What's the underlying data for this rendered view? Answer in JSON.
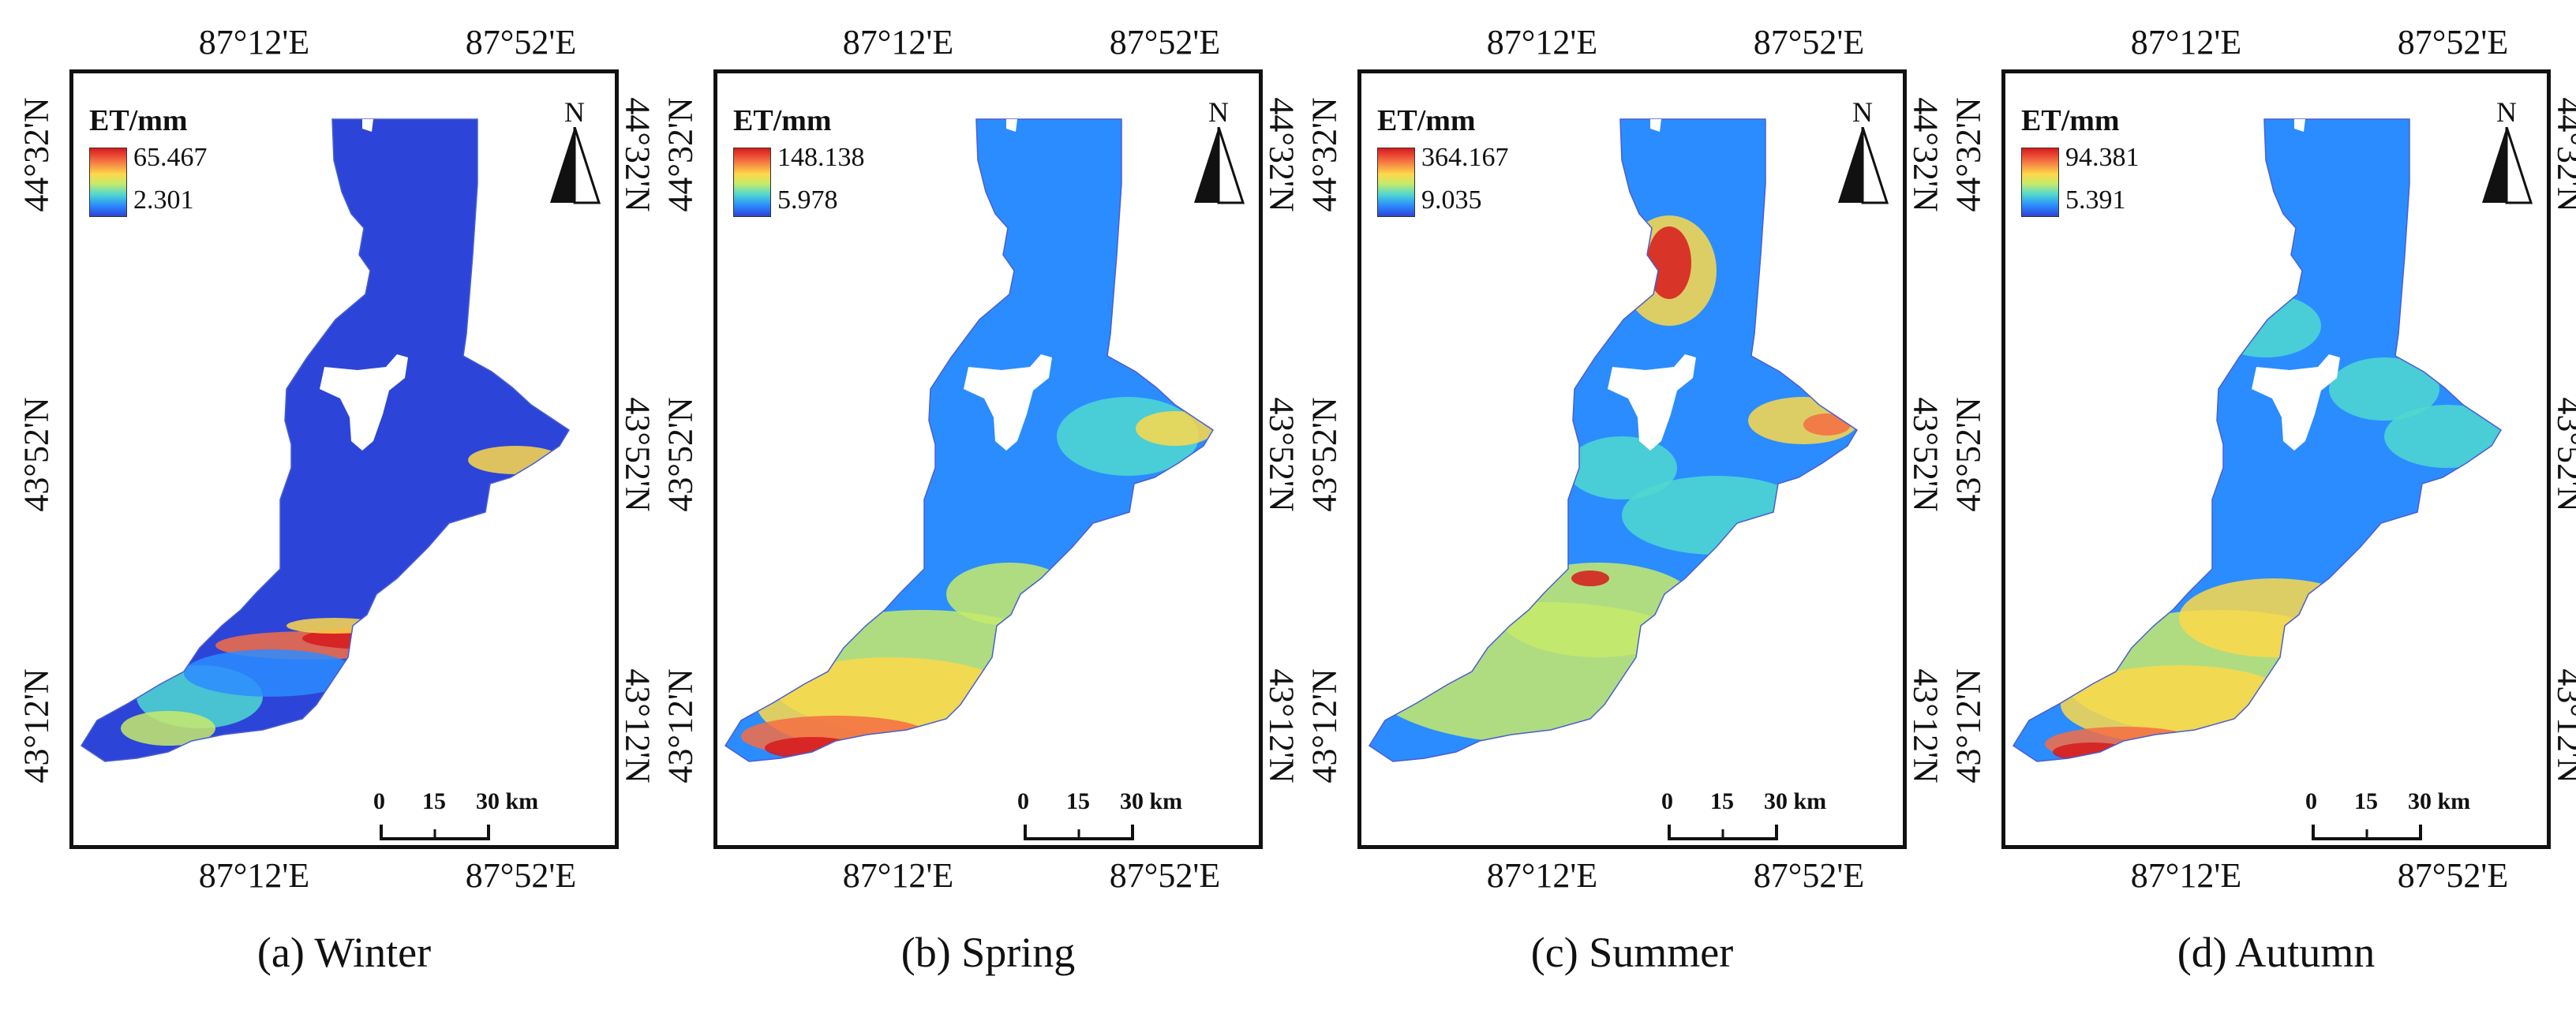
{
  "legend_title": "ET/mm",
  "scale_bar": {
    "ticks": [
      "0",
      "15",
      "30 km"
    ]
  },
  "north_arrow": {
    "label": "N"
  },
  "longitude_labels": [
    "87°12'E",
    "87°52'E"
  ],
  "latitude_labels": [
    "44°32'N",
    "43°52'N",
    "43°12'N"
  ],
  "panels": [
    {
      "caption": "(a) Winter",
      "legend_max": "65.467",
      "legend_min": "2.301"
    },
    {
      "caption": "(b) Spring",
      "legend_max": "148.138",
      "legend_min": "5.978"
    },
    {
      "caption": "(c) Summer",
      "legend_max": "364.167",
      "legend_min": "9.035"
    },
    {
      "caption": "(d) Autumn",
      "legend_max": "94.381",
      "legend_min": "5.391"
    }
  ],
  "colors": {
    "ramp": [
      "#d7191c",
      "#f46d43",
      "#fdd84a",
      "#c7ea6b",
      "#4fd8d0",
      "#2b8cff",
      "#2d44d8"
    ],
    "background": "#ffffff",
    "frame": "#111111"
  }
}
